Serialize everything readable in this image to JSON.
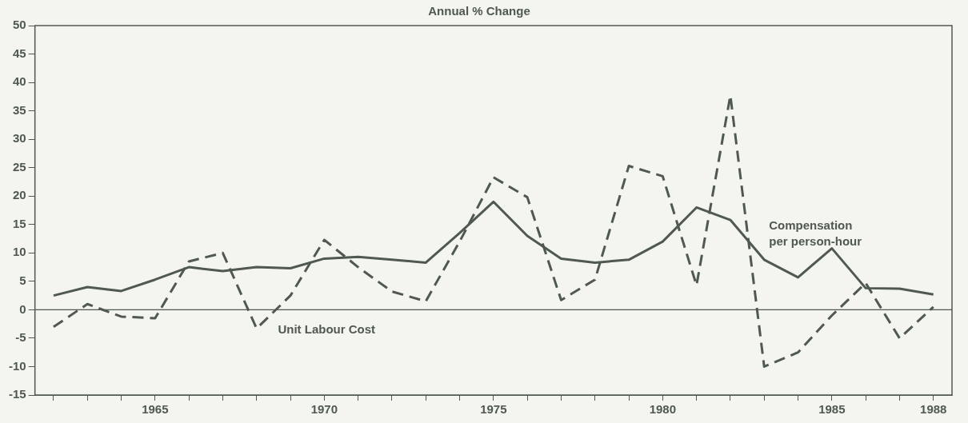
{
  "chart_data": {
    "type": "line",
    "title": "Annual % Change",
    "x": [
      1962,
      1963,
      1964,
      1965,
      1966,
      1967,
      1968,
      1969,
      1970,
      1971,
      1972,
      1973,
      1974,
      1975,
      1976,
      1977,
      1978,
      1979,
      1980,
      1981,
      1982,
      1983,
      1984,
      1985,
      1986,
      1987,
      1988
    ],
    "series": [
      {
        "name": "Compensation per person-hour",
        "color": "#4f594f",
        "line_style": "solid",
        "values": [
          2.5,
          4,
          3.3,
          5.3,
          7.5,
          6.8,
          7.5,
          7.3,
          9,
          9.3,
          8.8,
          8.3,
          13.5,
          19,
          13,
          9,
          8.3,
          8.8,
          12,
          18,
          15.8,
          8.8,
          5.7,
          10.8,
          3.8,
          3.7,
          2.7
        ]
      },
      {
        "name": "Unit Labour Cost",
        "color": "#4f594f",
        "line_style": "dashed",
        "values": [
          -3,
          1,
          -1.2,
          -1.5,
          8.5,
          10,
          -3.3,
          2.5,
          12.3,
          7.5,
          3.2,
          1.5,
          12,
          23.3,
          19.8,
          1.7,
          5.3,
          25.3,
          23.5,
          4.3,
          37.7,
          -10,
          -7.5,
          -1,
          4.7,
          -5,
          0.5
        ]
      }
    ],
    "xlim": [
      1961.45,
      1988.55
    ],
    "xticks": [
      {
        "value": 1962,
        "label": null
      },
      {
        "value": 1963,
        "label": null
      },
      {
        "value": 1964,
        "label": null
      },
      1965,
      {
        "value": 1966,
        "label": null
      },
      {
        "value": 1967,
        "label": null
      },
      {
        "value": 1968,
        "label": null
      },
      {
        "value": 1969,
        "label": null
      },
      1970,
      {
        "value": 1971,
        "label": null
      },
      {
        "value": 1972,
        "label": null
      },
      {
        "value": 1973,
        "label": null
      },
      {
        "value": 1974,
        "label": null
      },
      1975,
      {
        "value": 1976,
        "label": null
      },
      {
        "value": 1977,
        "label": null
      },
      {
        "value": 1978,
        "label": null
      },
      {
        "value": 1979,
        "label": null
      },
      1980,
      {
        "value": 1981,
        "label": null
      },
      {
        "value": 1982,
        "label": null
      },
      {
        "value": 1983,
        "label": null
      },
      {
        "value": 1984,
        "label": null
      },
      1985,
      {
        "value": 1986,
        "label": null
      },
      {
        "value": 1987,
        "label": null
      },
      1988
    ],
    "ylim": [
      -15,
      50
    ],
    "yticks": [
      -15,
      -10,
      -5,
      0,
      5,
      10,
      15,
      20,
      25,
      30,
      35,
      40,
      45,
      50
    ],
    "ref_lines": [
      {
        "axis": "y",
        "value": 0,
        "color": "#4f594f"
      }
    ],
    "grid": false,
    "legend": false,
    "marker": "none"
  }
}
